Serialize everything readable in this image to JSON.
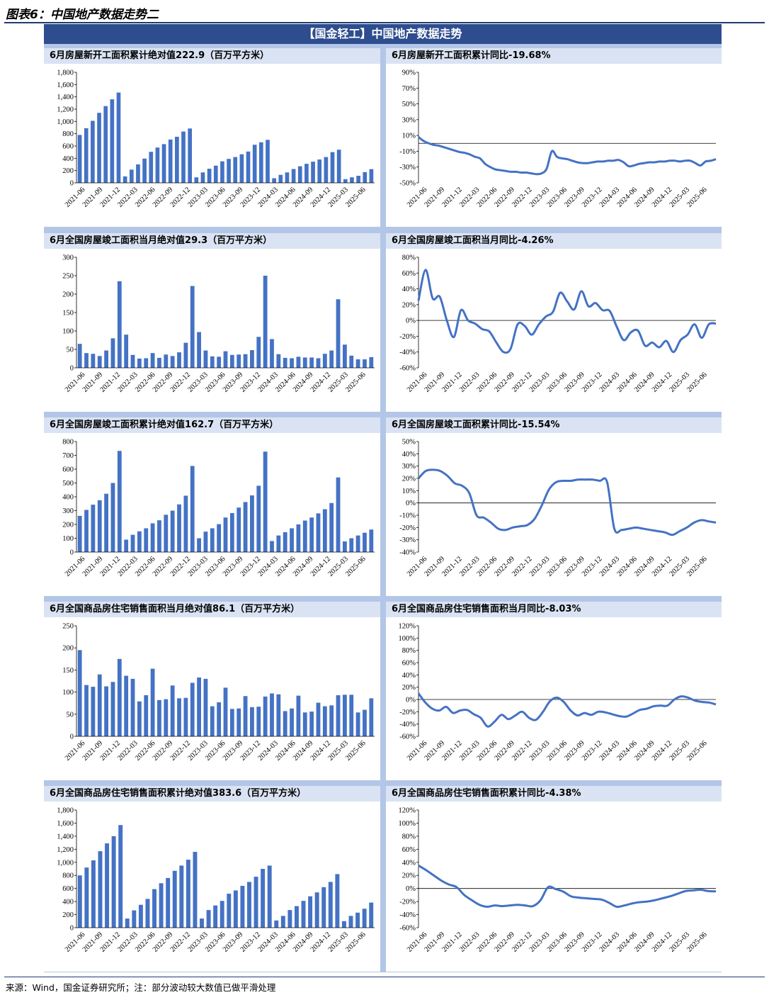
{
  "figure_title": "图表6：中国地产数据走势二",
  "banner": "【国金轻工】中国地产数据走势",
  "source": "来源：Wind，国金证券研究所；注：部分波动较大数值已做平滑处理",
  "colors": {
    "series": "#4472c4",
    "banner": "#2e4d8e",
    "frame": "#b4c6e7",
    "title_bg": "#dae3f3"
  },
  "x_ticks": [
    "2021-06",
    "2021-09",
    "2021-12",
    "2022-03",
    "2022-06",
    "2022-09",
    "2022-12",
    "2023-03",
    "2023-06",
    "2023-09",
    "2023-12",
    "2024-03",
    "2024-06",
    "2024-09",
    "2024-12",
    "2025-03",
    "2025-06"
  ],
  "chart_data": [
    {
      "type": "bar",
      "title": "6月房屋新开工面积累计绝对值222.9（百万平方米）",
      "ylim": [
        0,
        1800
      ],
      "yticks": [
        0,
        200,
        400,
        600,
        800,
        1000,
        1200,
        1400,
        1600,
        1800
      ],
      "ytick_labels": [
        "0",
        "200",
        "400",
        "600",
        "800",
        "1,000",
        "1,200",
        "1,400",
        "1,600",
        "1,800"
      ],
      "values": [
        {
          "x": "2021-06",
          "y": 780
        },
        {
          "x": "2021-07",
          "y": 890
        },
        {
          "x": "2021-08",
          "y": 1010
        },
        {
          "x": "2021-09",
          "y": 1140
        },
        {
          "x": "2021-10",
          "y": 1250
        },
        {
          "x": "2021-11",
          "y": 1360
        },
        {
          "x": "2021-12",
          "y": 1470
        },
        {
          "x": "2022-02",
          "y": 105
        },
        {
          "x": "2022-03",
          "y": 215
        },
        {
          "x": "2022-04",
          "y": 300
        },
        {
          "x": "2022-05",
          "y": 395
        },
        {
          "x": "2022-06",
          "y": 505
        },
        {
          "x": "2022-07",
          "y": 575
        },
        {
          "x": "2022-08",
          "y": 630
        },
        {
          "x": "2022-09",
          "y": 705
        },
        {
          "x": "2022-10",
          "y": 750
        },
        {
          "x": "2022-11",
          "y": 835
        },
        {
          "x": "2022-12",
          "y": 885
        },
        {
          "x": "2023-02",
          "y": 90
        },
        {
          "x": "2023-03",
          "y": 170
        },
        {
          "x": "2023-04",
          "y": 230
        },
        {
          "x": "2023-05",
          "y": 280
        },
        {
          "x": "2023-06",
          "y": 350
        },
        {
          "x": "2023-07",
          "y": 390
        },
        {
          "x": "2023-08",
          "y": 420
        },
        {
          "x": "2023-09",
          "y": 465
        },
        {
          "x": "2023-10",
          "y": 510
        },
        {
          "x": "2023-11",
          "y": 620
        },
        {
          "x": "2023-12",
          "y": 660
        },
        {
          "x": "2023-12b",
          "y": 700
        },
        {
          "x": "2024-02",
          "y": 75
        },
        {
          "x": "2024-03",
          "y": 130
        },
        {
          "x": "2024-04",
          "y": 170
        },
        {
          "x": "2024-05",
          "y": 225
        },
        {
          "x": "2024-06",
          "y": 270
        },
        {
          "x": "2024-07",
          "y": 310
        },
        {
          "x": "2024-08",
          "y": 345
        },
        {
          "x": "2024-09",
          "y": 380
        },
        {
          "x": "2024-10",
          "y": 420
        },
        {
          "x": "2024-11",
          "y": 500
        },
        {
          "x": "2024-12",
          "y": 540
        },
        {
          "x": "2025-02",
          "y": 60
        },
        {
          "x": "2025-03",
          "y": 90
        },
        {
          "x": "2025-04",
          "y": 115
        },
        {
          "x": "2025-05",
          "y": 175
        },
        {
          "x": "2025-06",
          "y": 223
        }
      ]
    },
    {
      "type": "line",
      "title": "6月房屋新开工面积累计同比-19.68%",
      "ylim": [
        -50,
        90
      ],
      "yticks": [
        -50,
        -30,
        -10,
        10,
        30,
        50,
        70,
        90
      ],
      "ytick_labels": [
        "-50%",
        "-30%",
        "-10%",
        "10%",
        "30%",
        "50%",
        "70%",
        "90%"
      ],
      "zero": 0,
      "values": [
        8,
        3,
        0,
        -2,
        -3,
        -5,
        -7,
        -9,
        -11,
        -12,
        -14,
        -17,
        -19,
        -26,
        -30,
        -33,
        -34,
        -35,
        -36,
        -36,
        -37,
        -37,
        -38,
        -39,
        -38,
        -32,
        -10,
        -17,
        -19,
        -20,
        -22,
        -24,
        -25,
        -25,
        -24,
        -23,
        -23,
        -22,
        -22,
        -21,
        -24,
        -29,
        -28,
        -26,
        -25,
        -24,
        -24,
        -23,
        -23,
        -22,
        -22,
        -23,
        -22,
        -22,
        -25,
        -28,
        -23,
        -22,
        -20
      ]
    },
    {
      "type": "bar",
      "title": "6月全国房屋竣工面积当月绝对值29.3（百万平方米）",
      "ylim": [
        0,
        300
      ],
      "yticks": [
        0,
        50,
        100,
        150,
        200,
        250,
        300
      ],
      "ytick_labels": [
        "0",
        "50",
        "100",
        "150",
        "200",
        "250",
        "300"
      ],
      "values": [
        65,
        40,
        38,
        32,
        47,
        80,
        235,
        90,
        35,
        25,
        26,
        40,
        27,
        36,
        32,
        42,
        68,
        222,
        97,
        47,
        31,
        30,
        45,
        35,
        36,
        37,
        48,
        84,
        250,
        78,
        37,
        27,
        26,
        30,
        28,
        28,
        26,
        38,
        47,
        186,
        63,
        33,
        23,
        23,
        29
      ]
    },
    {
      "type": "line",
      "title": "6月全国房屋竣工面积当月同比-4.26%",
      "ylim": [
        -60,
        80
      ],
      "yticks": [
        -60,
        -40,
        -20,
        0,
        20,
        40,
        60,
        80
      ],
      "ytick_labels": [
        "-60%",
        "-40%",
        "-20%",
        "0%",
        "20%",
        "40%",
        "60%",
        "80%"
      ],
      "zero": 0,
      "values": [
        25,
        64,
        28,
        30,
        0,
        -21,
        13,
        0,
        -4,
        -11,
        -14,
        -28,
        -40,
        -36,
        -5,
        -7,
        -18,
        -5,
        5,
        11,
        35,
        24,
        14,
        37,
        18,
        22,
        13,
        12,
        -8,
        -25,
        -15,
        -13,
        -32,
        -28,
        -34,
        -26,
        -40,
        -25,
        -18,
        -5,
        -22,
        -5,
        -4
      ]
    },
    {
      "type": "bar",
      "title": "6月全国房屋竣工面积累计绝对值162.7（百万平方米）",
      "ylim": [
        0,
        800
      ],
      "yticks": [
        0,
        100,
        200,
        300,
        400,
        500,
        600,
        700,
        800
      ],
      "ytick_labels": [
        "0",
        "100",
        "200",
        "300",
        "400",
        "500",
        "600",
        "700",
        "800"
      ],
      "values": [
        262,
        305,
        343,
        375,
        422,
        500,
        732,
        90,
        125,
        150,
        172,
        208,
        230,
        270,
        300,
        345,
        408,
        623,
        100,
        148,
        172,
        202,
        250,
        282,
        322,
        362,
        410,
        480,
        727,
        80,
        120,
        144,
        172,
        200,
        228,
        250,
        280,
        310,
        355,
        540,
        77,
        100,
        120,
        140,
        163
      ]
    },
    {
      "type": "line",
      "title": "6月全国房屋竣工面积累计同比-15.54%",
      "ylim": [
        -40,
        50
      ],
      "yticks": [
        -40,
        -30,
        -20,
        -10,
        0,
        10,
        20,
        30,
        40,
        50
      ],
      "ytick_labels": [
        "-40%",
        "-30%",
        "-20%",
        "-10%",
        "0%",
        "10%",
        "20%",
        "30%",
        "40%",
        "50%"
      ],
      "zero": 0,
      "values": [
        20,
        26,
        27,
        26,
        22,
        16,
        14,
        8,
        -10,
        -12,
        -16,
        -21,
        -22,
        -20,
        -19,
        -18,
        -13,
        -2,
        11,
        17,
        18,
        18,
        19,
        19,
        19,
        18,
        17,
        -21,
        -22,
        -21,
        -20,
        -21,
        -22,
        -23,
        -24,
        -26,
        -23,
        -20,
        -16,
        -14,
        -15,
        -16
      ]
    },
    {
      "type": "bar",
      "title": "6月全国商品房住宅销售面积当月绝对值86.1（百万平方米）",
      "ylim": [
        0,
        250
      ],
      "yticks": [
        0,
        50,
        100,
        150,
        200,
        250
      ],
      "ytick_labels": [
        "0",
        "50",
        "100",
        "150",
        "200",
        "250"
      ],
      "values": [
        195,
        116,
        112,
        140,
        113,
        123,
        175,
        137,
        130,
        79,
        93,
        153,
        82,
        84,
        115,
        86,
        87,
        121,
        133,
        130,
        68,
        77,
        110,
        62,
        63,
        91,
        66,
        67,
        90,
        97,
        95,
        57,
        63,
        92,
        54,
        56,
        76,
        68,
        70,
        93,
        94,
        94,
        54,
        60,
        86
      ]
    },
    {
      "type": "line",
      "title": "6月全国商品房住宅销售面积当月同比-8.03%",
      "ylim": [
        -60,
        120
      ],
      "yticks": [
        -60,
        -40,
        -20,
        0,
        20,
        40,
        60,
        80,
        100,
        120
      ],
      "ytick_labels": [
        "-60%",
        "-40%",
        "-20%",
        "0%",
        "20%",
        "40%",
        "60%",
        "80%",
        "100%",
        "120%"
      ],
      "zero": 0,
      "values": [
        10,
        -5,
        -15,
        -18,
        -12,
        -22,
        -18,
        -17,
        -24,
        -30,
        -44,
        -36,
        -25,
        -32,
        -26,
        -20,
        -30,
        -33,
        -20,
        -3,
        3,
        -4,
        -18,
        -26,
        -22,
        -25,
        -20,
        -21,
        -24,
        -27,
        -28,
        -23,
        -17,
        -15,
        -11,
        -10,
        -10,
        0,
        5,
        3,
        -2,
        -4,
        -5,
        -8
      ]
    },
    {
      "type": "bar",
      "title": "6月全国商品房住宅销售面积累计绝对值383.6（百万平方米）",
      "ylim": [
        0,
        1800
      ],
      "yticks": [
        0,
        200,
        400,
        600,
        800,
        1000,
        1200,
        1400,
        1600,
        1800
      ],
      "ytick_labels": [
        "0",
        "200",
        "400",
        "600",
        "800",
        "1,000",
        "1,200",
        "1,400",
        "1,600",
        "1,800"
      ],
      "values": [
        800,
        920,
        1030,
        1170,
        1290,
        1400,
        1570,
        140,
        265,
        350,
        440,
        590,
        680,
        760,
        870,
        950,
        1040,
        1160,
        140,
        270,
        340,
        410,
        520,
        570,
        640,
        700,
        780,
        900,
        950,
        110,
        180,
        270,
        330,
        410,
        480,
        540,
        620,
        700,
        820,
        100,
        180,
        230,
        290,
        384
      ]
    },
    {
      "type": "line",
      "title": "6月全国商品房住宅销售面积累计同比-4.38%",
      "ylim": [
        -60,
        120
      ],
      "yticks": [
        -60,
        -40,
        -20,
        0,
        20,
        40,
        60,
        80,
        100,
        120
      ],
      "ytick_labels": [
        "-60%",
        "-40%",
        "-20%",
        "0%",
        "20%",
        "40%",
        "60%",
        "80%",
        "100%",
        "120%"
      ],
      "zero": 0,
      "values": [
        35,
        28,
        20,
        12,
        6,
        2,
        -10,
        -18,
        -25,
        -28,
        -26,
        -27,
        -26,
        -25,
        -26,
        -27,
        -18,
        2,
        -1,
        -5,
        -12,
        -14,
        -15,
        -16,
        -17,
        -22,
        -28,
        -26,
        -23,
        -21,
        -20,
        -18,
        -15,
        -12,
        -8,
        -4,
        -3,
        -2,
        -4,
        -4.4
      ]
    }
  ]
}
